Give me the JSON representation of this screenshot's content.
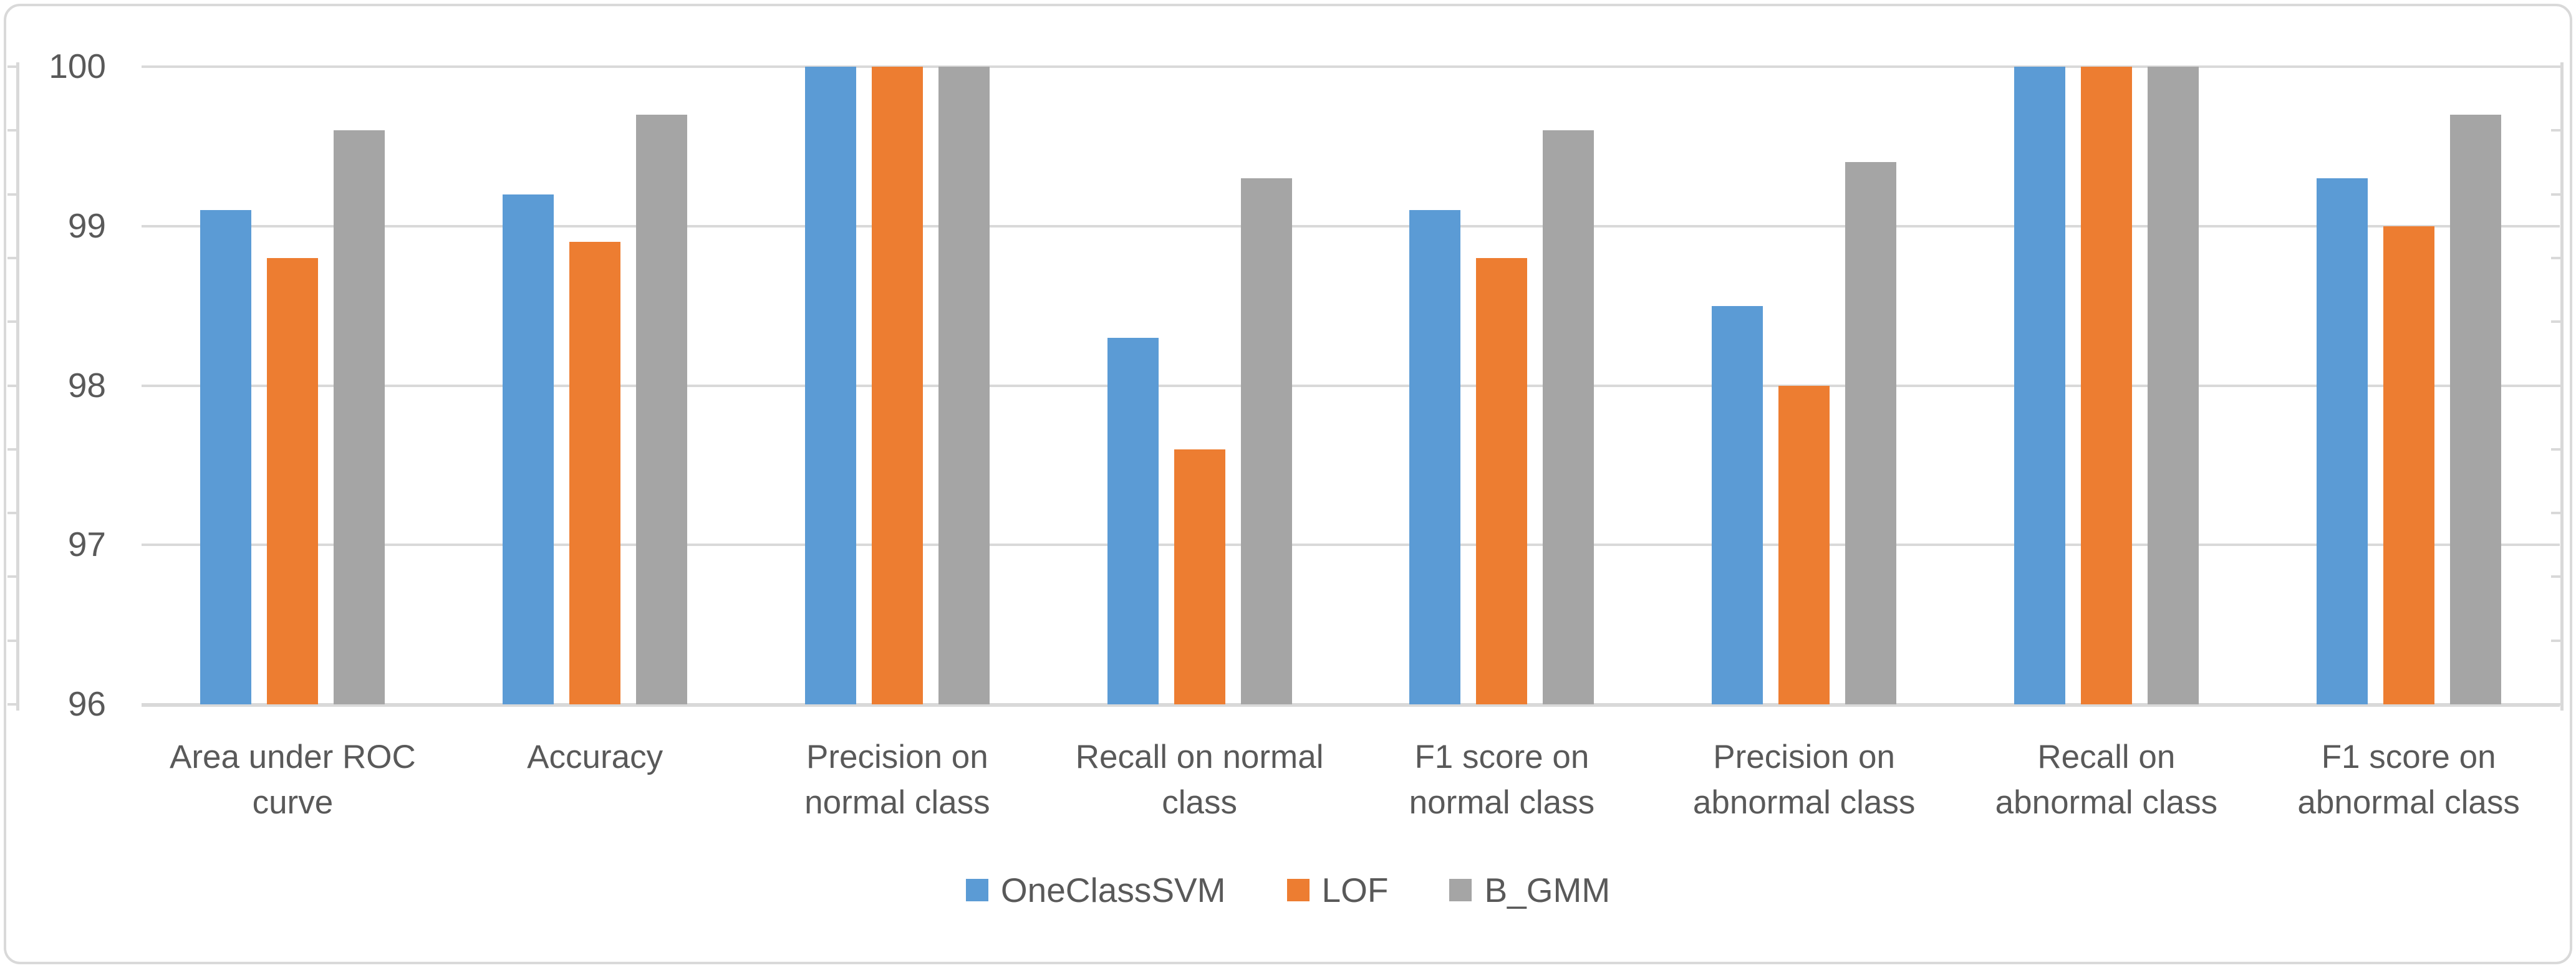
{
  "chart_data": {
    "type": "bar",
    "title": "",
    "categories": [
      "Area under ROC curve",
      "Accuracy",
      "Precision on normal class",
      "Recall on normal class",
      "F1 score on normal class",
      "Precision on abnormal class",
      "Recall on abnormal class",
      "F1 score on abnormal class"
    ],
    "category_label_lines": [
      [
        "Area under ROC",
        "curve"
      ],
      [
        "Accuracy"
      ],
      [
        "Precision on",
        "normal class"
      ],
      [
        "Recall on normal",
        "class"
      ],
      [
        "F1 score on",
        "normal class"
      ],
      [
        "Precision on",
        "abnormal class"
      ],
      [
        "Recall on",
        "abnormal class"
      ],
      [
        "F1 score on",
        "abnormal class"
      ]
    ],
    "series": [
      {
        "name": "OneClassSVM",
        "color": "#5B9BD5",
        "values": [
          99.1,
          99.2,
          100,
          98.3,
          99.1,
          98.5,
          100,
          99.3
        ]
      },
      {
        "name": "LOF",
        "color": "#ED7D31",
        "values": [
          98.8,
          98.9,
          100,
          97.6,
          98.8,
          98.0,
          100,
          99.0
        ]
      },
      {
        "name": "B_GMM",
        "color": "#A5A5A5",
        "values": [
          99.6,
          99.7,
          100,
          99.3,
          99.6,
          99.4,
          100,
          99.7
        ]
      }
    ],
    "y_axis": {
      "min": 96,
      "max": 100,
      "major_step": 1,
      "minor_tick_step": 0.4,
      "tick_labels": [
        "100",
        "99",
        "98",
        "97",
        "96"
      ]
    },
    "xlabel": "",
    "ylabel": "",
    "legend_position": "bottom",
    "grid": true
  },
  "style": {
    "grid_color": "#D9D9D9",
    "axis_text_color": "#595959",
    "border_color": "#D9D9D9",
    "background": "#FFFFFF"
  }
}
